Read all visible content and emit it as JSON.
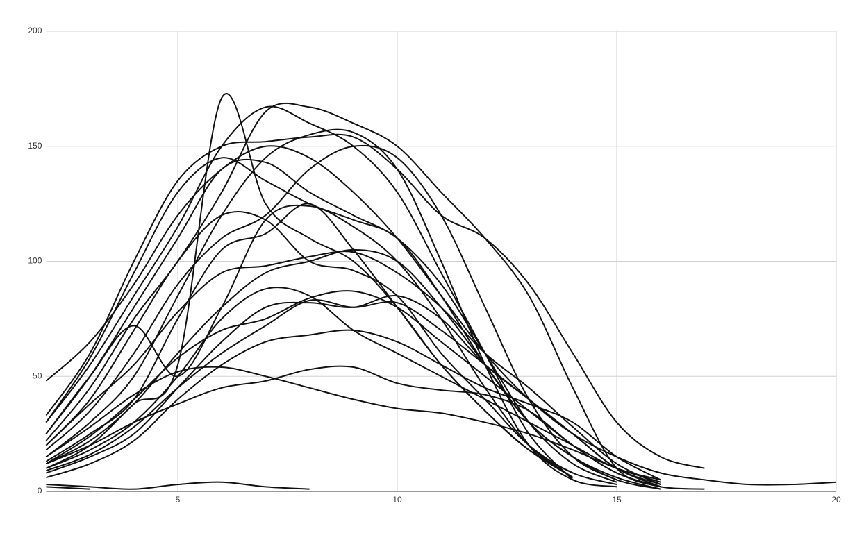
{
  "chart_data": {
    "type": "line",
    "x": [
      2,
      3,
      4,
      5,
      6,
      7,
      8,
      9,
      10,
      11,
      12,
      13,
      14,
      15,
      16,
      17,
      18,
      19,
      20
    ],
    "xlim": [
      2,
      20
    ],
    "xticks": [
      5,
      10,
      15,
      20
    ],
    "ylim": [
      0,
      200
    ],
    "yticks": [
      0,
      50,
      100,
      150,
      200
    ],
    "grid": true,
    "smooth": true,
    "series": [
      {
        "color": "#111111",
        "values": [
          48,
          65,
          90,
          120,
          140,
          150,
          145,
          130,
          110,
          85,
          60,
          40,
          25,
          15,
          8,
          5,
          3,
          3,
          4
        ]
      },
      {
        "color": "#111111",
        "values": [
          33,
          60,
          100,
          135,
          150,
          152,
          154,
          154,
          140,
          120,
          110,
          90,
          60,
          30,
          15,
          10,
          null,
          null,
          null
        ]
      },
      {
        "color": "#111111",
        "values": [
          10,
          20,
          38,
          55,
          171,
          125,
          110,
          100,
          80,
          55,
          35,
          18,
          8,
          null,
          null,
          null,
          null,
          null,
          null
        ]
      },
      {
        "color": "#111111",
        "values": [
          30,
          55,
          85,
          115,
          150,
          167,
          160,
          150,
          130,
          95,
          60,
          25,
          5,
          null,
          null,
          null,
          null,
          null,
          null
        ]
      },
      {
        "color": "#111111",
        "values": [
          25,
          50,
          72,
          50,
          80,
          118,
          124,
          115,
          100,
          75,
          45,
          20,
          6,
          null,
          null,
          null,
          null,
          null,
          null
        ]
      },
      {
        "color": "#111111",
        "values": [
          20,
          40,
          70,
          100,
          120,
          118,
          100,
          96,
          85,
          60,
          40,
          20,
          8,
          3,
          null,
          null,
          null,
          null,
          null
        ]
      },
      {
        "color": "#111111",
        "values": [
          15,
          30,
          50,
          85,
          120,
          145,
          155,
          156,
          140,
          100,
          55,
          20,
          5,
          2,
          null,
          null,
          null,
          null,
          null
        ]
      },
      {
        "color": "#111111",
        "values": [
          13,
          25,
          40,
          75,
          105,
          112,
          125,
          105,
          80,
          55,
          35,
          18,
          6,
          null,
          null,
          null,
          null,
          null,
          null
        ]
      },
      {
        "color": "#111111",
        "values": [
          12,
          22,
          38,
          60,
          80,
          95,
          100,
          105,
          100,
          80,
          55,
          30,
          15,
          5,
          1,
          null,
          null,
          null,
          null
        ]
      },
      {
        "color": "#111111",
        "values": [
          10,
          18,
          30,
          50,
          75,
          88,
          85,
          70,
          60,
          50,
          40,
          30,
          20,
          10,
          5,
          null,
          null,
          null,
          null
        ]
      },
      {
        "color": "#111111",
        "values": [
          8,
          15,
          25,
          45,
          65,
          80,
          82,
          80,
          85,
          75,
          55,
          40,
          25,
          10,
          3,
          null,
          null,
          null,
          null
        ]
      },
      {
        "color": "#111111",
        "values": [
          6,
          12,
          22,
          40,
          55,
          65,
          68,
          70,
          65,
          55,
          45,
          38,
          30,
          15,
          5,
          null,
          null,
          null,
          null
        ]
      },
      {
        "color": "#111111",
        "values": [
          15,
          28,
          42,
          52,
          54,
          50,
          45,
          40,
          36,
          34,
          30,
          25,
          18,
          10,
          4,
          null,
          null,
          null,
          null
        ]
      },
      {
        "color": "#111111",
        "values": [
          12,
          20,
          30,
          38,
          45,
          48,
          53,
          54,
          47,
          44,
          42,
          35,
          20,
          8,
          2,
          null,
          null,
          null,
          null
        ]
      },
      {
        "color": "#111111",
        "values": [
          22,
          45,
          75,
          100,
          130,
          165,
          167,
          160,
          150,
          130,
          110,
          85,
          45,
          10,
          2,
          null,
          null,
          null,
          null
        ]
      },
      {
        "color": "#111111",
        "values": [
          18,
          35,
          60,
          90,
          110,
          120,
          140,
          150,
          145,
          120,
          80,
          40,
          15,
          5,
          null,
          null,
          null,
          null,
          null
        ]
      },
      {
        "color": "#111111",
        "values": [
          25,
          50,
          80,
          110,
          140,
          143,
          130,
          120,
          110,
          90,
          60,
          30,
          12,
          4,
          null,
          null,
          null,
          null,
          null
        ]
      },
      {
        "color": "#111111",
        "values": [
          20,
          38,
          55,
          78,
          95,
          98,
          102,
          104,
          95,
          80,
          60,
          45,
          28,
          12,
          3,
          null,
          null,
          null,
          null
        ]
      },
      {
        "color": "#111111",
        "values": [
          9,
          16,
          28,
          45,
          60,
          72,
          83,
          80,
          82,
          70,
          55,
          40,
          25,
          10,
          2,
          null,
          null,
          null,
          null
        ]
      },
      {
        "color": "#111111",
        "values": [
          12,
          24,
          40,
          58,
          70,
          75,
          84,
          87,
          80,
          65,
          50,
          35,
          20,
          8,
          2,
          1,
          null,
          null,
          null
        ]
      },
      {
        "color": "#111111",
        "values": [
          30,
          58,
          95,
          130,
          145,
          135,
          125,
          118,
          110,
          85,
          55,
          30,
          15,
          6,
          1,
          null,
          null,
          null,
          null
        ]
      },
      {
        "color": "#111111",
        "values": [
          3,
          2,
          1,
          3,
          4,
          2,
          1,
          null,
          null,
          null,
          null,
          null,
          null,
          null,
          null,
          null,
          null,
          null,
          null
        ]
      },
      {
        "color": "#111111",
        "values": [
          2,
          1,
          null,
          null,
          null,
          null,
          null,
          null,
          null,
          null,
          null,
          null,
          null,
          null,
          null,
          null,
          null,
          null,
          null
        ]
      }
    ]
  }
}
